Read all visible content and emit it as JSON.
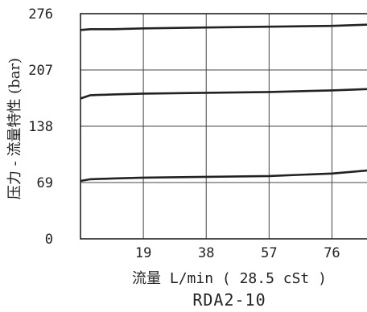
{
  "chart_data": {
    "type": "line",
    "title": "",
    "subtitle": "RDA2-10",
    "xlabel": "流量 L/min ( 28.5 cSt )",
    "ylabel": "压力 - 流量特性 (bar)",
    "xlim": [
      0,
      90
    ],
    "ylim": [
      0,
      276
    ],
    "x_ticks": [
      "19",
      "38",
      "57",
      "76"
    ],
    "y_ticks": [
      "0",
      "69",
      "138",
      "207",
      "276"
    ],
    "grid": true,
    "line_color": "#222222",
    "series": [
      {
        "x": [
          0,
          3,
          10,
          19,
          38,
          57,
          76,
          90
        ],
        "values": [
          71,
          73,
          74,
          75,
          76,
          77,
          80,
          85
        ]
      },
      {
        "x": [
          0,
          3,
          10,
          19,
          38,
          57,
          76,
          90
        ],
        "values": [
          172,
          176,
          177,
          178,
          179,
          180,
          182,
          184
        ]
      },
      {
        "x": [
          0,
          3,
          10,
          19,
          38,
          57,
          76,
          90
        ],
        "values": [
          256,
          257,
          257,
          258,
          259,
          260,
          261,
          263
        ]
      }
    ]
  }
}
